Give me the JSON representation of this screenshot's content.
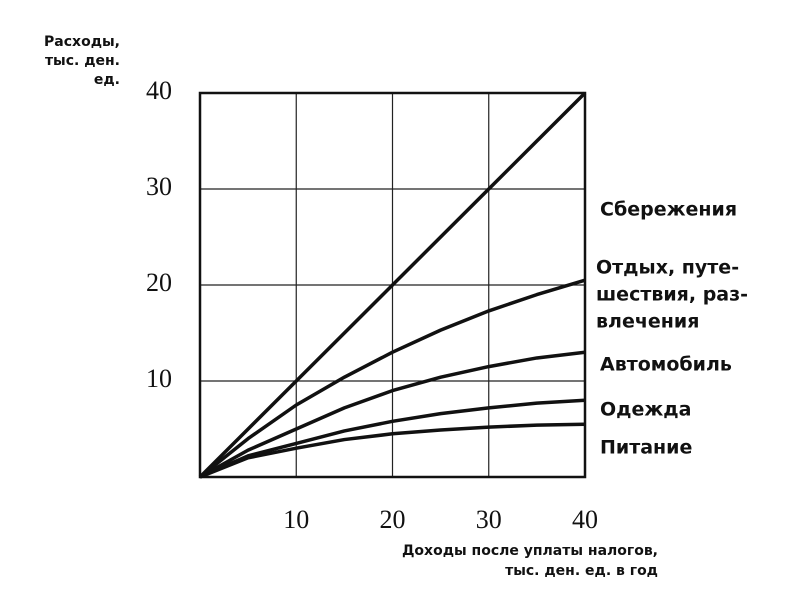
{
  "chart_data": {
    "type": "stacked-line",
    "ylabel": [
      "Расходы,",
      "тыс. ден.",
      "ед."
    ],
    "xlabel": [
      "Доходы после уплаты налогов,",
      "тыс. ден. ед. в год"
    ],
    "x": [
      0,
      5,
      10,
      15,
      20,
      25,
      30,
      35,
      40
    ],
    "series": [
      {
        "name": "Питание",
        "color": "#111111",
        "values": [
          0,
          2,
          3,
          3.9,
          4.5,
          4.9,
          5.2,
          5.4,
          5.5
        ]
      },
      {
        "name": "Одежда",
        "color": "#111111",
        "values": [
          0,
          0.2,
          0.5,
          0.9,
          1.3,
          1.7,
          2,
          2.3,
          2.5
        ]
      },
      {
        "name": "Автомобиль",
        "color": "#111111",
        "values": [
          0,
          0.6,
          1.5,
          2.4,
          3.2,
          3.8,
          4.3,
          4.7,
          5
        ]
      },
      {
        "name": [
          "Отдых, путе-",
          "шествия, раз-",
          "влечения"
        ],
        "color": "#111111",
        "values": [
          0,
          1.2,
          2.5,
          3.2,
          4,
          4.9,
          5.8,
          6.6,
          7.5
        ]
      },
      {
        "name": "Сбережения",
        "color": "#111111",
        "values": [
          0,
          1,
          2.5,
          4.6,
          7,
          9.7,
          12.7,
          16,
          19.5
        ]
      }
    ],
    "xlim": [
      0,
      40
    ],
    "ylim": [
      0,
      40
    ],
    "xticks": [
      10,
      20,
      30,
      40
    ],
    "yticks": [
      10,
      20,
      30,
      40
    ],
    "grid": true
  }
}
